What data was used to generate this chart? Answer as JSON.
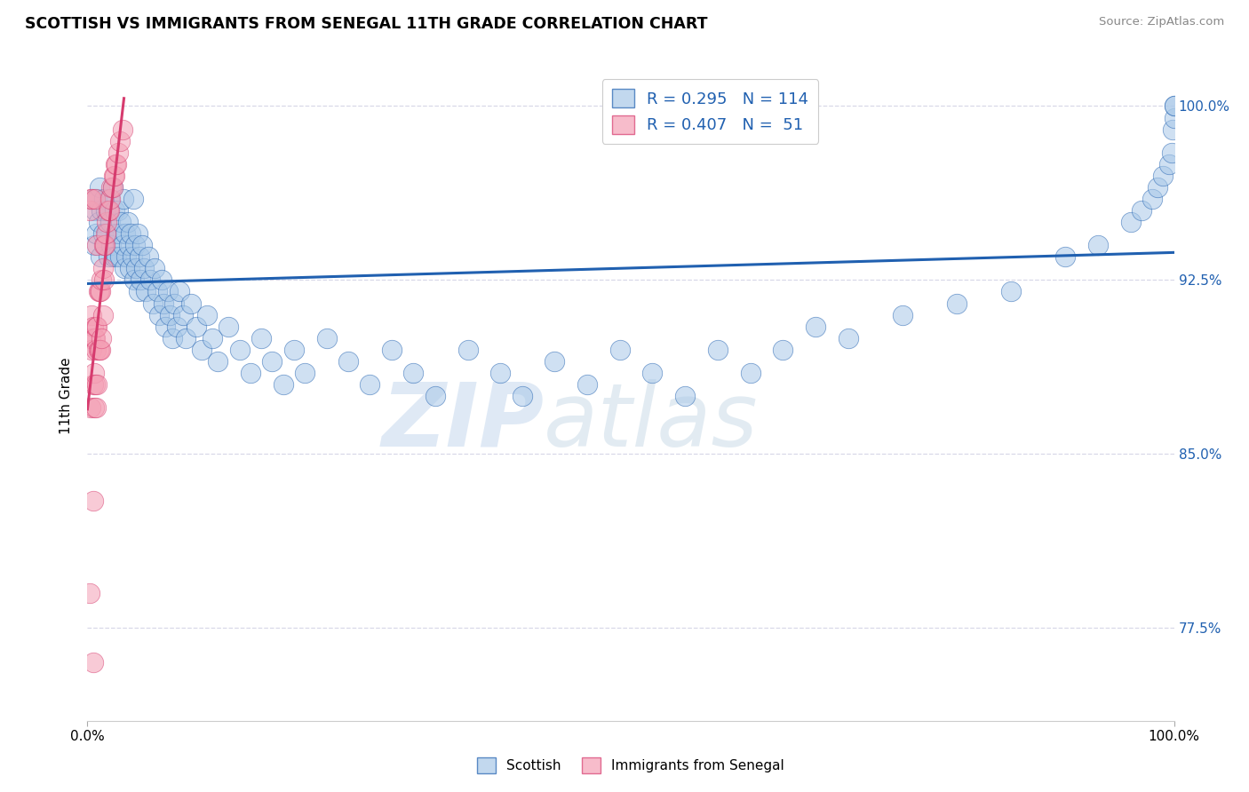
{
  "title": "SCOTTISH VS IMMIGRANTS FROM SENEGAL 11TH GRADE CORRELATION CHART",
  "source_text": "Source: ZipAtlas.com",
  "ylabel": "11th Grade",
  "x_min": 0.0,
  "x_max": 1.0,
  "y_min": 0.735,
  "y_max": 1.015,
  "y_ticks": [
    0.775,
    0.85,
    0.925,
    1.0
  ],
  "y_tick_labels": [
    "77.5%",
    "85.0%",
    "92.5%",
    "100.0%"
  ],
  "x_tick_labels": [
    "0.0%",
    "100.0%"
  ],
  "legend_r_blue": "R = 0.295",
  "legend_n_blue": "N = 114",
  "legend_r_pink": "R = 0.407",
  "legend_n_pink": "N =  51",
  "blue_color": "#a8c8e8",
  "pink_color": "#f4a0b5",
  "blue_line_color": "#2060b0",
  "pink_line_color": "#d63b6e",
  "watermark_zip": "ZIP",
  "watermark_atlas": "atlas",
  "background_color": "#ffffff",
  "grid_color": "#d8d8e8",
  "blue_scatter_x": [
    0.005,
    0.006,
    0.007,
    0.008,
    0.009,
    0.01,
    0.011,
    0.012,
    0.013,
    0.014,
    0.015,
    0.016,
    0.017,
    0.018,
    0.019,
    0.02,
    0.021,
    0.022,
    0.023,
    0.024,
    0.025,
    0.026,
    0.027,
    0.028,
    0.029,
    0.03,
    0.031,
    0.032,
    0.033,
    0.034,
    0.035,
    0.036,
    0.037,
    0.038,
    0.039,
    0.04,
    0.041,
    0.042,
    0.043,
    0.044,
    0.045,
    0.046,
    0.047,
    0.048,
    0.049,
    0.05,
    0.052,
    0.054,
    0.056,
    0.058,
    0.06,
    0.062,
    0.064,
    0.066,
    0.068,
    0.07,
    0.072,
    0.074,
    0.076,
    0.078,
    0.08,
    0.082,
    0.085,
    0.088,
    0.09,
    0.095,
    0.1,
    0.105,
    0.11,
    0.115,
    0.12,
    0.13,
    0.14,
    0.15,
    0.16,
    0.17,
    0.18,
    0.19,
    0.2,
    0.22,
    0.24,
    0.26,
    0.28,
    0.3,
    0.32,
    0.35,
    0.38,
    0.4,
    0.43,
    0.46,
    0.49,
    0.52,
    0.55,
    0.58,
    0.61,
    0.64,
    0.67,
    0.7,
    0.75,
    0.8,
    0.85,
    0.9,
    0.93,
    0.96,
    0.97,
    0.98,
    0.985,
    0.99,
    0.995,
    0.998,
    0.999,
    1.0,
    1.0,
    1.0
  ],
  "blue_scatter_y": [
    0.96,
    0.94,
    0.955,
    0.945,
    0.96,
    0.95,
    0.965,
    0.935,
    0.955,
    0.945,
    0.96,
    0.94,
    0.955,
    0.945,
    0.935,
    0.96,
    0.95,
    0.94,
    0.965,
    0.935,
    0.955,
    0.945,
    0.935,
    0.955,
    0.945,
    0.935,
    0.95,
    0.94,
    0.96,
    0.93,
    0.945,
    0.935,
    0.95,
    0.94,
    0.93,
    0.945,
    0.935,
    0.96,
    0.925,
    0.94,
    0.93,
    0.945,
    0.92,
    0.935,
    0.925,
    0.94,
    0.93,
    0.92,
    0.935,
    0.925,
    0.915,
    0.93,
    0.92,
    0.91,
    0.925,
    0.915,
    0.905,
    0.92,
    0.91,
    0.9,
    0.915,
    0.905,
    0.92,
    0.91,
    0.9,
    0.915,
    0.905,
    0.895,
    0.91,
    0.9,
    0.89,
    0.905,
    0.895,
    0.885,
    0.9,
    0.89,
    0.88,
    0.895,
    0.885,
    0.9,
    0.89,
    0.88,
    0.895,
    0.885,
    0.875,
    0.895,
    0.885,
    0.875,
    0.89,
    0.88,
    0.895,
    0.885,
    0.875,
    0.895,
    0.885,
    0.895,
    0.905,
    0.9,
    0.91,
    0.915,
    0.92,
    0.935,
    0.94,
    0.95,
    0.955,
    0.96,
    0.965,
    0.97,
    0.975,
    0.98,
    0.99,
    0.995,
    1.0,
    1.0
  ],
  "pink_scatter_x": [
    0.002,
    0.002,
    0.003,
    0.003,
    0.003,
    0.004,
    0.004,
    0.004,
    0.005,
    0.005,
    0.005,
    0.005,
    0.006,
    0.006,
    0.006,
    0.007,
    0.007,
    0.007,
    0.008,
    0.008,
    0.008,
    0.009,
    0.009,
    0.009,
    0.01,
    0.01,
    0.011,
    0.011,
    0.012,
    0.012,
    0.013,
    0.013,
    0.014,
    0.014,
    0.015,
    0.015,
    0.016,
    0.017,
    0.018,
    0.019,
    0.02,
    0.021,
    0.022,
    0.023,
    0.024,
    0.025,
    0.026,
    0.027,
    0.028,
    0.03,
    0.032
  ],
  "pink_scatter_y": [
    0.79,
    0.955,
    0.87,
    0.9,
    0.96,
    0.895,
    0.91,
    0.96,
    0.88,
    0.905,
    0.76,
    0.83,
    0.885,
    0.9,
    0.87,
    0.9,
    0.88,
    0.96,
    0.895,
    0.905,
    0.87,
    0.905,
    0.88,
    0.94,
    0.895,
    0.92,
    0.895,
    0.92,
    0.895,
    0.92,
    0.9,
    0.925,
    0.91,
    0.93,
    0.925,
    0.94,
    0.94,
    0.945,
    0.95,
    0.955,
    0.955,
    0.96,
    0.965,
    0.965,
    0.97,
    0.97,
    0.975,
    0.975,
    0.98,
    0.985,
    0.99
  ]
}
